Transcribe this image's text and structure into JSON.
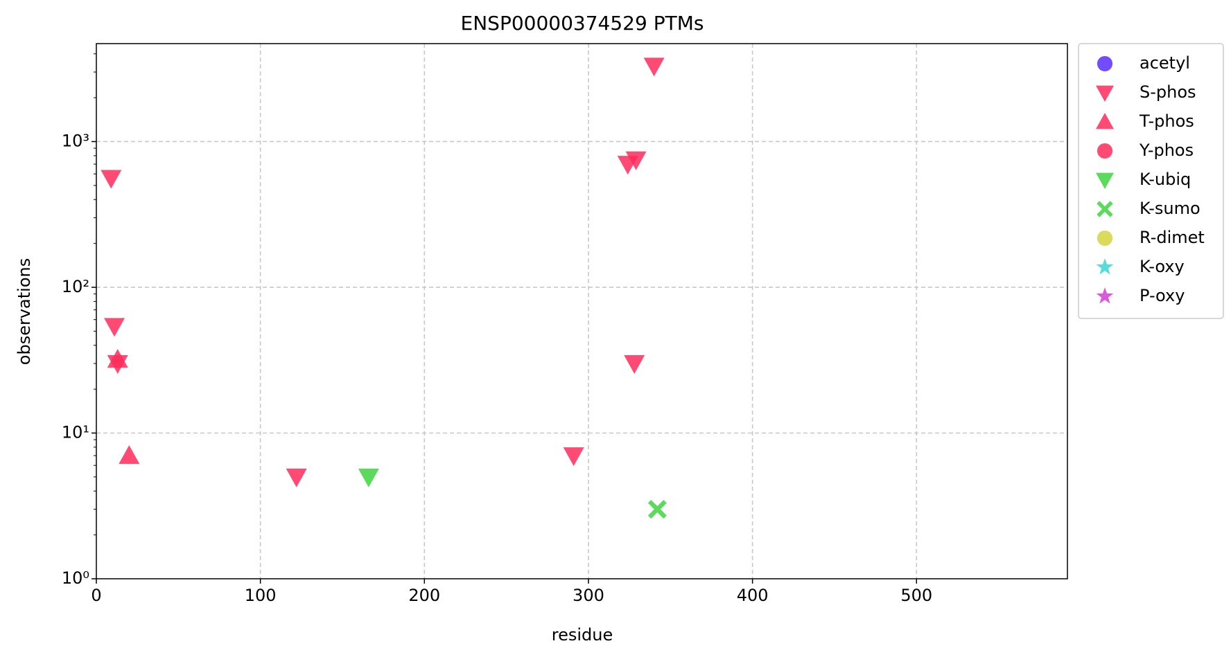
{
  "chart_data": {
    "type": "scatter",
    "title": "ENSP00000374529 PTMs",
    "x_label": "residue",
    "y_label": "observations",
    "xlim": [
      0,
      592
    ],
    "xticks": [
      0,
      100,
      200,
      300,
      400,
      500
    ],
    "ylim": [
      1,
      4700
    ],
    "log_y": true,
    "yticks": [
      {
        "value": 1,
        "label": "10⁰"
      },
      {
        "value": 10,
        "label": "10¹"
      },
      {
        "value": 100,
        "label": "10²"
      },
      {
        "value": 1000,
        "label": "10³"
      }
    ],
    "grid": true,
    "legend": "outside right",
    "series": [
      {
        "name": "acetyl",
        "color": "#5a2dff",
        "marker": "circle",
        "x": [],
        "values": []
      },
      {
        "name": "S-phos",
        "color": "#ff2a5a",
        "marker": "triangle-down",
        "x": [
          9,
          11,
          13,
          122,
          291,
          324,
          329,
          328,
          340
        ],
        "values": [
          560,
          54,
          30,
          5,
          7,
          700,
          750,
          30,
          3300
        ]
      },
      {
        "name": "T-phos",
        "color": "#ff2a5a",
        "marker": "triangle-up",
        "x": [
          13,
          20
        ],
        "values": [
          32,
          7
        ]
      },
      {
        "name": "Y-phos",
        "color": "#ff2a5a",
        "marker": "circle",
        "x": [],
        "values": []
      },
      {
        "name": "K-ubiq",
        "color": "#3ed43e",
        "marker": "triangle-down",
        "x": [
          166
        ],
        "values": [
          5
        ]
      },
      {
        "name": "K-sumo",
        "color": "#3ed43e",
        "marker": "x",
        "x": [
          342
        ],
        "values": [
          3
        ]
      },
      {
        "name": "R-dimet",
        "color": "#d4d43e",
        "marker": "circle",
        "x": [],
        "values": []
      },
      {
        "name": "K-oxy",
        "color": "#3ed4d4",
        "marker": "star",
        "x": [],
        "values": []
      },
      {
        "name": "P-oxy",
        "color": "#d43ed4",
        "marker": "star",
        "x": [],
        "values": []
      }
    ]
  }
}
